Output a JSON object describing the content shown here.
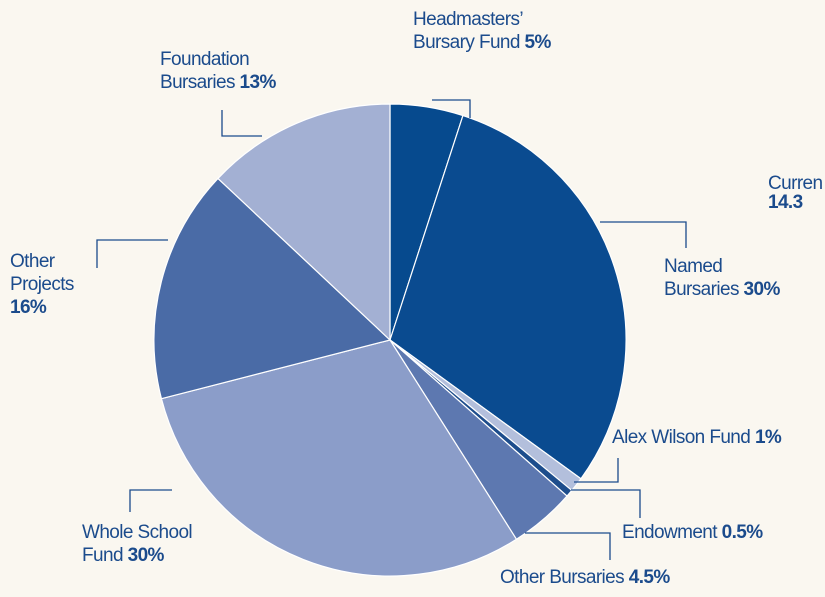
{
  "chart_data": {
    "type": "pie",
    "categories": [
      "Headmasters’ Bursary Fund",
      "Named Bursaries",
      "Alex Wilson Fund",
      "Endowment",
      "Other Bursaries",
      "Whole School Fund",
      "Other Projects",
      "Foundation Bursaries"
    ],
    "values": [
      5,
      30,
      1,
      0.5,
      4.5,
      30,
      16,
      13
    ],
    "value_labels": [
      "5%",
      "30%",
      "1%",
      "0.5%",
      "4.5%",
      "30%",
      "16%",
      "13%"
    ],
    "colors": [
      "#064a8e",
      "#0a4b90",
      "#b3bfdc",
      "#1d4d8c",
      "#5d78b0",
      "#8b9dc9",
      "#4a6ba6",
      "#a3b0d3"
    ],
    "annotations": [
      "Curren",
      "14.3"
    ]
  }
}
